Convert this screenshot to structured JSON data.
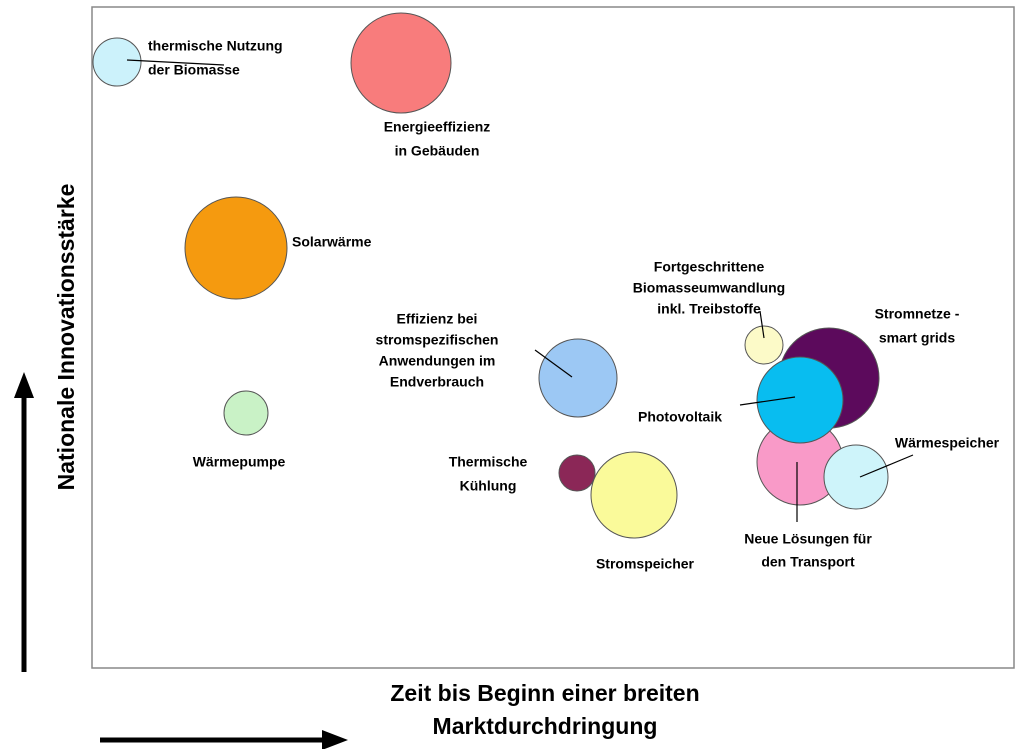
{
  "y_axis_title": "Nationale Innovationsstärke",
  "x_axis_title": [
    "Zeit bis Beginn einer breiten",
    "Marktdurchdringung"
  ],
  "nodes": [
    {
      "label": [
        "thermische Nutzung",
        "der Biomasse"
      ]
    },
    {
      "label": [
        "Energieeffizienz",
        "in Gebäuden"
      ]
    },
    {
      "label": [
        "Solarwärme"
      ]
    },
    {
      "label": [
        "Wärmepumpe"
      ]
    },
    {
      "label": [
        "Effizienz bei",
        "stromspezifischen",
        "Anwendungen im",
        "Endverbrauch"
      ]
    },
    {
      "label": [
        "Thermische",
        "Kühlung"
      ]
    },
    {
      "label": [
        "Stromspeicher"
      ]
    },
    {
      "label": [
        "Fortgeschrittene",
        "Biomasseumwandlung",
        "inkl. Treibstoffe"
      ]
    },
    {
      "label": [
        "Stromnetze -",
        "smart grids"
      ]
    },
    {
      "label": [
        "Neue Lösungen für",
        "den Transport"
      ]
    },
    {
      "label": [
        "Wärmespeicher"
      ]
    },
    {
      "label": [
        "Photovoltaik"
      ]
    }
  ]
}
